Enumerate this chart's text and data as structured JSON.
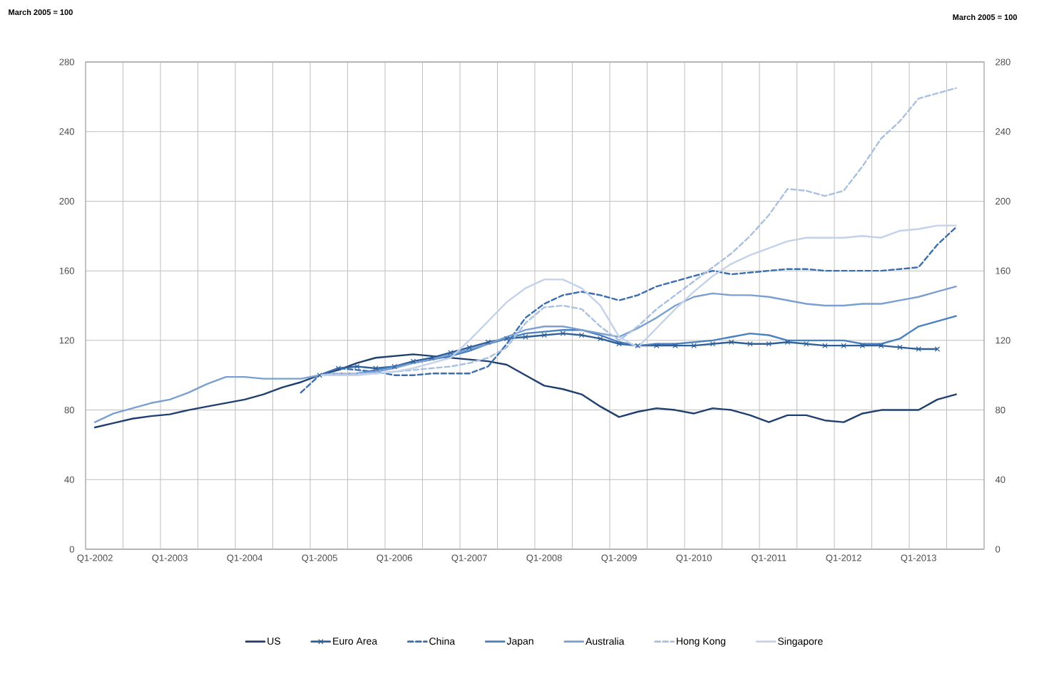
{
  "chart_data": {
    "type": "line",
    "annotations": [
      "March 2005 = 100",
      "March 2005 = 100"
    ],
    "categories": [
      "Q1-2002",
      null,
      null,
      null,
      "Q1-2003",
      null,
      null,
      null,
      "Q1-2004",
      null,
      null,
      null,
      "Q1-2005",
      null,
      null,
      null,
      "Q1-2006",
      null,
      null,
      null,
      "Q1-2007",
      null,
      null,
      null,
      "Q1-2008",
      null,
      null,
      null,
      "Q1-2009",
      null,
      null,
      null,
      "Q1-2010",
      null,
      null,
      null,
      "Q1-2011",
      null,
      null,
      null,
      "Q1-2012",
      null,
      null,
      null,
      "Q1-2013",
      null,
      null,
      null
    ],
    "ylim": [
      0,
      280
    ],
    "yticks": [
      0,
      40,
      80,
      120,
      160,
      200,
      240,
      280
    ],
    "y2lim": [
      0,
      280
    ],
    "y2ticks": [
      0,
      40,
      80,
      120,
      160,
      200,
      240,
      280
    ],
    "grid": true,
    "legend": "bottom",
    "series": [
      {
        "name": "US",
        "color": "#1f3f6e",
        "line_style": "solid",
        "marker": "none",
        "values": [
          70,
          72.5,
          75,
          76.5,
          77.5,
          80,
          82,
          84,
          86,
          89,
          93,
          96,
          100,
          103,
          107,
          110,
          111,
          112,
          111,
          110,
          109,
          108,
          106,
          100,
          94,
          92,
          89,
          82,
          76,
          79,
          81,
          80,
          78,
          81,
          80,
          77,
          73,
          77,
          77,
          74,
          73,
          78,
          80,
          80,
          80,
          86,
          89,
          null
        ]
      },
      {
        "name": "Euro Area",
        "color": "#2e5f99",
        "line_style": "solid",
        "marker": "cross",
        "values": [
          null,
          null,
          null,
          null,
          null,
          null,
          null,
          null,
          null,
          null,
          null,
          null,
          100,
          104,
          105,
          104,
          105,
          108,
          110,
          113,
          116,
          119,
          121,
          122,
          123,
          124,
          123,
          121,
          118,
          117,
          117,
          117,
          117,
          118,
          119,
          118,
          118,
          119,
          118,
          117,
          117,
          117,
          117,
          116,
          115,
          115,
          null,
          null
        ]
      },
      {
        "name": "China",
        "color": "#3a6eb0",
        "line_style": "dashed",
        "marker": "none",
        "values": [
          null,
          null,
          null,
          null,
          null,
          null,
          null,
          null,
          null,
          null,
          null,
          90,
          100,
          104,
          103,
          102,
          100,
          100,
          101,
          101,
          101,
          105,
          118,
          133,
          141,
          146,
          148,
          146,
          143,
          146,
          151,
          154,
          157,
          160,
          158,
          159,
          160,
          161,
          161,
          160,
          160,
          160,
          160,
          161,
          162,
          175,
          185,
          null
        ]
      },
      {
        "name": "Japan",
        "color": "#4a7fc0",
        "line_style": "solid",
        "marker": "none",
        "values": [
          null,
          null,
          null,
          null,
          null,
          null,
          null,
          null,
          null,
          null,
          null,
          null,
          100,
          101,
          101,
          103,
          105,
          107,
          109,
          111,
          114,
          118,
          121,
          124,
          125,
          126,
          126,
          123,
          119,
          117,
          118,
          118,
          119,
          120,
          122,
          124,
          123,
          120,
          120,
          120,
          120,
          118,
          118,
          121,
          128,
          131,
          134,
          null
        ]
      },
      {
        "name": "Australia",
        "color": "#7a9fd0",
        "line_style": "solid",
        "marker": "none",
        "values": [
          73,
          78,
          81,
          84,
          86,
          90,
          95,
          99,
          99,
          98,
          98,
          98,
          100,
          101,
          101,
          102,
          104,
          107,
          109,
          112,
          115,
          118,
          122,
          126,
          128,
          128,
          126,
          124,
          122,
          127,
          133,
          140,
          145,
          147,
          146,
          146,
          145,
          143,
          141,
          140,
          140,
          141,
          141,
          143,
          145,
          148,
          151,
          null
        ]
      },
      {
        "name": "Hong Kong",
        "color": "#a9c0e0",
        "line_style": "dashed",
        "marker": "none",
        "values": [
          null,
          null,
          null,
          null,
          null,
          null,
          null,
          null,
          null,
          null,
          null,
          null,
          100,
          101,
          101,
          101,
          102,
          103,
          104,
          105,
          107,
          110,
          116,
          130,
          139,
          140,
          138,
          128,
          120,
          128,
          138,
          146,
          154,
          162,
          170,
          180,
          192,
          207,
          206,
          203,
          206,
          220,
          236,
          246,
          259,
          262,
          265,
          null
        ]
      },
      {
        "name": "Singapore",
        "color": "#c3d2ea",
        "line_style": "solid",
        "marker": "none",
        "values": [
          null,
          null,
          null,
          null,
          null,
          null,
          null,
          null,
          null,
          null,
          null,
          null,
          100,
          100,
          100,
          101,
          102,
          104,
          107,
          110,
          120,
          131,
          142,
          150,
          155,
          155,
          150,
          140,
          122,
          116,
          127,
          138,
          148,
          157,
          164,
          169,
          173,
          177,
          179,
          179,
          179,
          180,
          179,
          183,
          184,
          186,
          186,
          null
        ]
      }
    ]
  }
}
